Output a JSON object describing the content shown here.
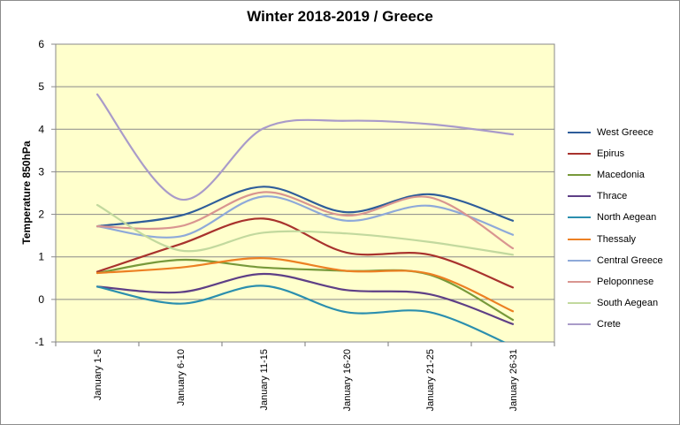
{
  "chart_data": {
    "type": "line",
    "title": "Winter 2018-2019 / Greece",
    "xlabel": "",
    "ylabel": "Temperature 850hPa",
    "ylim": [
      -1,
      6
    ],
    "yticks": [
      "-1",
      "0",
      "1",
      "2",
      "3",
      "4",
      "5",
      "6"
    ],
    "grid": true,
    "legend_position": "right",
    "plot_background": "#ffffcc",
    "categories": [
      "January 1-5",
      "January 6-10",
      "January 11-15",
      "January 16-20",
      "January 21-25",
      "January 26-31"
    ],
    "series": [
      {
        "name": "West Greece",
        "color": "#2e5d9a",
        "values": [
          1.72,
          1.97,
          2.65,
          2.05,
          2.47,
          1.85
        ]
      },
      {
        "name": "Epirus",
        "color": "#a8322d",
        "values": [
          0.65,
          1.3,
          1.9,
          1.1,
          1.05,
          0.28
        ]
      },
      {
        "name": "Macedonia",
        "color": "#77993a",
        "values": [
          0.62,
          0.93,
          0.75,
          0.67,
          0.58,
          -0.48
        ]
      },
      {
        "name": "Thrace",
        "color": "#5e3f86",
        "values": [
          0.3,
          0.17,
          0.6,
          0.22,
          0.12,
          -0.58
        ]
      },
      {
        "name": "North Aegean",
        "color": "#2b8fae",
        "values": [
          0.3,
          -0.1,
          0.32,
          -0.3,
          -0.3,
          -1.1
        ]
      },
      {
        "name": "Thessaly",
        "color": "#ec8023",
        "values": [
          0.62,
          0.75,
          0.97,
          0.67,
          0.6,
          -0.28
        ]
      },
      {
        "name": "Central Greece",
        "color": "#8ea9d9",
        "values": [
          1.72,
          1.48,
          2.42,
          1.85,
          2.2,
          1.52
        ]
      },
      {
        "name": "Peloponnese",
        "color": "#d99590",
        "values": [
          1.72,
          1.72,
          2.52,
          1.97,
          2.4,
          1.2
        ]
      },
      {
        "name": "South Aegean",
        "color": "#c2d99e",
        "values": [
          2.22,
          1.15,
          1.57,
          1.55,
          1.35,
          1.05
        ]
      },
      {
        "name": "Crete",
        "color": "#a99bc9",
        "values": [
          4.82,
          2.35,
          4.02,
          4.2,
          4.12,
          3.88
        ]
      }
    ]
  }
}
